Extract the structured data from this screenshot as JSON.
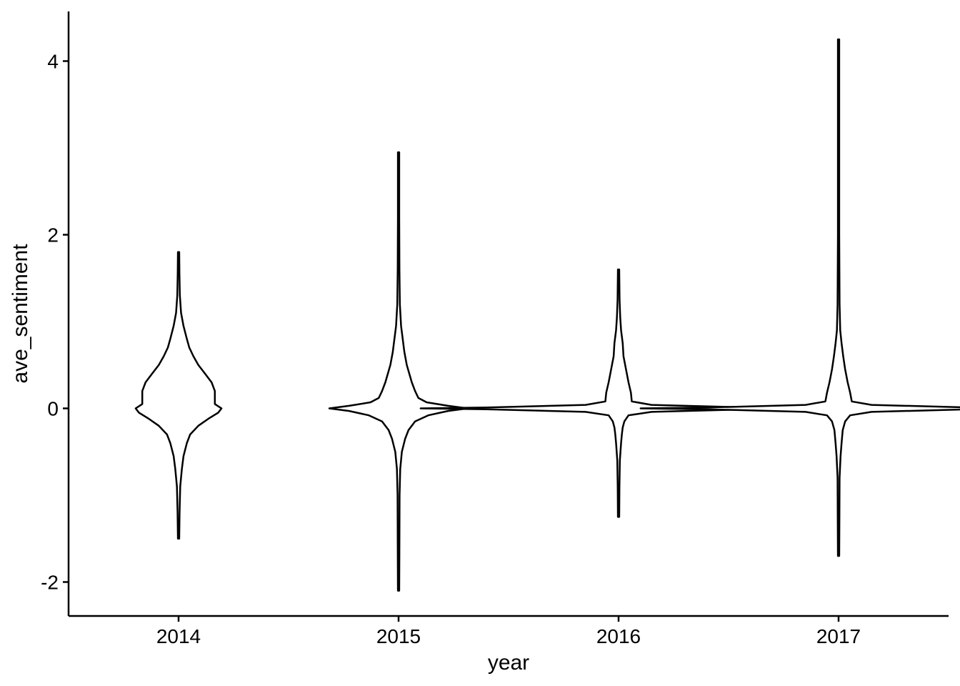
{
  "chart_data": {
    "type": "violin",
    "xlabel": "year",
    "ylabel": "ave_sentiment",
    "categories": [
      "2014",
      "2015",
      "2016",
      "2017"
    ],
    "y_ticks": [
      -2,
      0,
      2,
      4
    ],
    "y_tick_labels": [
      "-2",
      "0",
      "2",
      "4"
    ],
    "ylim": [
      -2.4,
      4.6
    ],
    "grid": false,
    "legend": "none",
    "series": [
      {
        "category": "2014",
        "min": -1.5,
        "max": 1.8,
        "density": [
          [
            -1.5,
            0.004
          ],
          [
            -1.2,
            0.006
          ],
          [
            -0.9,
            0.01
          ],
          [
            -0.7,
            0.02
          ],
          [
            -0.55,
            0.03
          ],
          [
            -0.4,
            0.05
          ],
          [
            -0.3,
            0.07
          ],
          [
            -0.2,
            0.12
          ],
          [
            -0.12,
            0.18
          ],
          [
            -0.05,
            0.24
          ],
          [
            0.0,
            0.26
          ],
          [
            0.05,
            0.22
          ],
          [
            0.12,
            0.22
          ],
          [
            0.2,
            0.22
          ],
          [
            0.3,
            0.2
          ],
          [
            0.4,
            0.16
          ],
          [
            0.5,
            0.12
          ],
          [
            0.6,
            0.09
          ],
          [
            0.7,
            0.065
          ],
          [
            0.8,
            0.05
          ],
          [
            0.95,
            0.03
          ],
          [
            1.1,
            0.015
          ],
          [
            1.3,
            0.008
          ],
          [
            1.55,
            0.005
          ],
          [
            1.8,
            0.004
          ]
        ]
      },
      {
        "category": "2015",
        "min": -2.1,
        "max": 2.95,
        "density": [
          [
            -2.1,
            0.004
          ],
          [
            -1.5,
            0.005
          ],
          [
            -1.0,
            0.006
          ],
          [
            -0.7,
            0.01
          ],
          [
            -0.5,
            0.02
          ],
          [
            -0.35,
            0.04
          ],
          [
            -0.25,
            0.06
          ],
          [
            -0.15,
            0.1
          ],
          [
            -0.08,
            0.18
          ],
          [
            -0.03,
            0.3
          ],
          [
            0.0,
            0.42
          ],
          [
            0.03,
            0.3
          ],
          [
            0.07,
            0.17
          ],
          [
            0.12,
            0.12
          ],
          [
            0.2,
            0.1
          ],
          [
            0.3,
            0.08
          ],
          [
            0.4,
            0.065
          ],
          [
            0.5,
            0.05
          ],
          [
            0.65,
            0.035
          ],
          [
            0.8,
            0.025
          ],
          [
            0.95,
            0.015
          ],
          [
            1.2,
            0.008
          ],
          [
            1.6,
            0.005
          ],
          [
            2.2,
            0.004
          ],
          [
            2.95,
            0.004
          ]
        ]
      },
      {
        "category": "2016",
        "min": -1.25,
        "max": 1.6,
        "density": [
          [
            -1.25,
            0.004
          ],
          [
            -0.9,
            0.005
          ],
          [
            -0.6,
            0.008
          ],
          [
            -0.4,
            0.015
          ],
          [
            -0.3,
            0.02
          ],
          [
            -0.22,
            0.025
          ],
          [
            -0.15,
            0.035
          ],
          [
            -0.08,
            0.06
          ],
          [
            -0.04,
            0.2
          ],
          [
            -0.01,
            0.8
          ],
          [
            0.0,
            1.2
          ],
          [
            0.01,
            0.8
          ],
          [
            0.04,
            0.2
          ],
          [
            0.08,
            0.08
          ],
          [
            0.18,
            0.075
          ],
          [
            0.3,
            0.06
          ],
          [
            0.45,
            0.045
          ],
          [
            0.6,
            0.03
          ],
          [
            0.75,
            0.025
          ],
          [
            0.9,
            0.015
          ],
          [
            1.05,
            0.01
          ],
          [
            1.25,
            0.006
          ],
          [
            1.6,
            0.004
          ]
        ]
      },
      {
        "category": "2017",
        "min": -1.7,
        "max": 4.25,
        "density": [
          [
            -1.7,
            0.004
          ],
          [
            -1.2,
            0.005
          ],
          [
            -0.8,
            0.006
          ],
          [
            -0.55,
            0.012
          ],
          [
            -0.4,
            0.018
          ],
          [
            -0.25,
            0.025
          ],
          [
            -0.15,
            0.04
          ],
          [
            -0.08,
            0.07
          ],
          [
            -0.04,
            0.2
          ],
          [
            -0.01,
            0.8
          ],
          [
            0.0,
            1.2
          ],
          [
            0.01,
            0.8
          ],
          [
            0.04,
            0.2
          ],
          [
            0.08,
            0.08
          ],
          [
            0.18,
            0.07
          ],
          [
            0.3,
            0.055
          ],
          [
            0.45,
            0.04
          ],
          [
            0.6,
            0.028
          ],
          [
            0.75,
            0.018
          ],
          [
            0.9,
            0.01
          ],
          [
            1.2,
            0.006
          ],
          [
            2.0,
            0.004
          ],
          [
            3.0,
            0.004
          ],
          [
            4.25,
            0.004
          ]
        ]
      }
    ]
  }
}
